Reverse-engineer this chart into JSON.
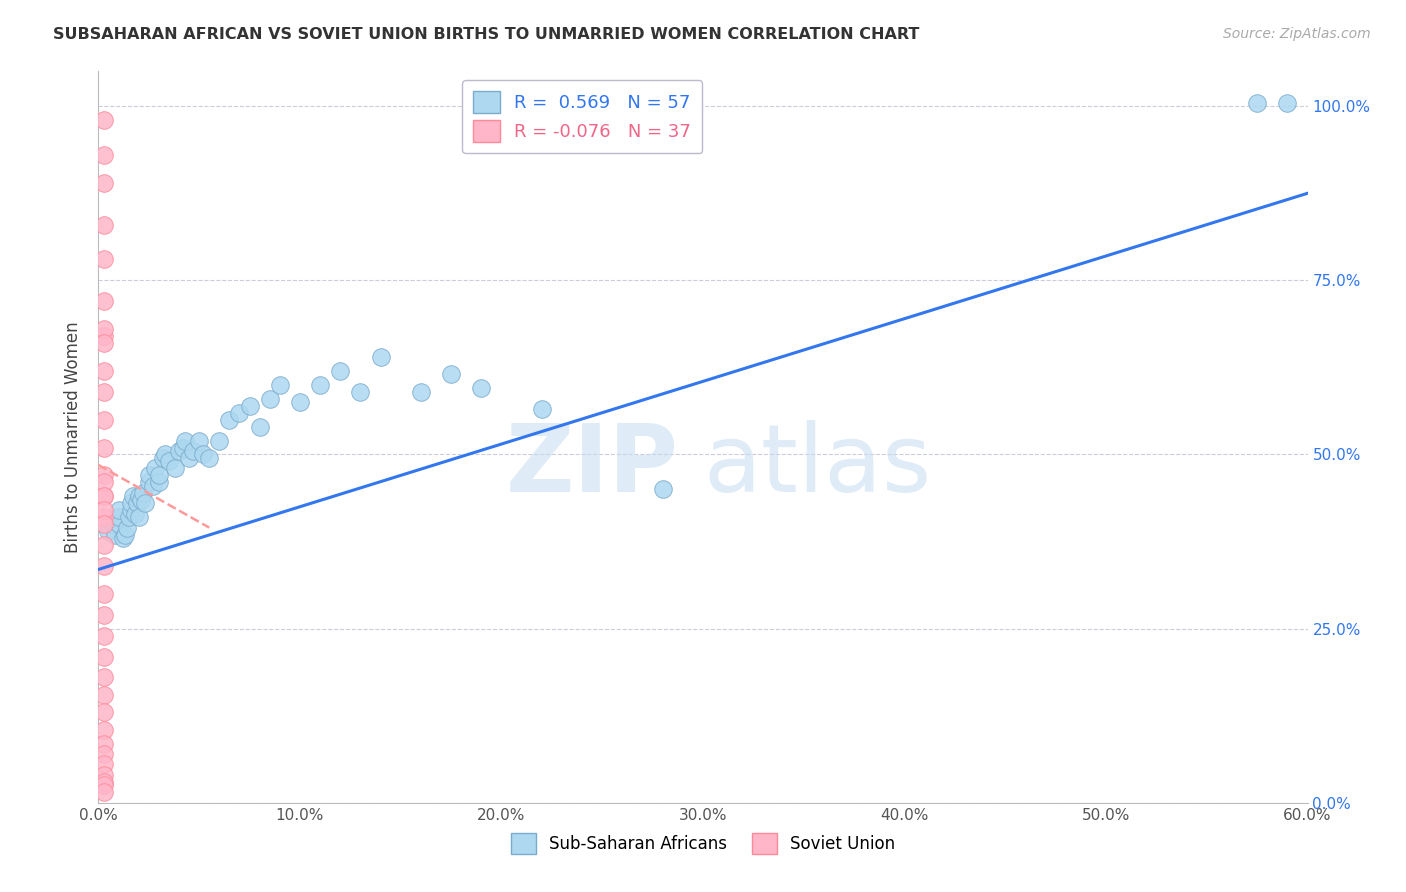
{
  "title": "SUBSAHARAN AFRICAN VS SOVIET UNION BIRTHS TO UNMARRIED WOMEN CORRELATION CHART",
  "source": "Source: ZipAtlas.com",
  "ylabel": "Births to Unmarried Women",
  "blue_label": "Sub-Saharan Africans",
  "pink_label": "Soviet Union",
  "blue_R": 0.569,
  "blue_N": 57,
  "pink_R": -0.076,
  "pink_N": 37,
  "blue_color": "#ADD8F0",
  "pink_color": "#FFB6C8",
  "blue_edge": "#7AABCC",
  "pink_edge": "#FF8899",
  "trend_blue": "#3377EE",
  "trend_pink": "#FF9999",
  "xmin": 0.0,
  "xmax": 0.6,
  "ymin": 0.0,
  "ymax": 1.05,
  "yticks": [
    0.0,
    0.25,
    0.5,
    0.75,
    1.0
  ],
  "ytick_labels": [
    "0.0%",
    "25.0%",
    "50.0%",
    "75.0%",
    "100.0%"
  ],
  "xticks": [
    0.0,
    0.1,
    0.2,
    0.3,
    0.4,
    0.5,
    0.6
  ],
  "xtick_labels": [
    "0.0%",
    "10.0%",
    "20.0%",
    "30.0%",
    "40.0%",
    "50.0%",
    "60.0%"
  ],
  "blue_trend_x0": 0.0,
  "blue_trend_y0": 0.335,
  "blue_trend_x1": 0.6,
  "blue_trend_y1": 0.875,
  "pink_trend_x0": 0.0,
  "pink_trend_y0": 0.485,
  "pink_trend_x1": 0.055,
  "pink_trend_y1": 0.395,
  "blue_x": [
    0.005,
    0.007,
    0.008,
    0.01,
    0.01,
    0.01,
    0.012,
    0.013,
    0.014,
    0.015,
    0.016,
    0.016,
    0.017,
    0.018,
    0.019,
    0.02,
    0.02,
    0.021,
    0.022,
    0.023,
    0.025,
    0.025,
    0.027,
    0.028,
    0.03,
    0.03,
    0.032,
    0.033,
    0.035,
    0.038,
    0.04,
    0.042,
    0.043,
    0.045,
    0.047,
    0.05,
    0.052,
    0.055,
    0.06,
    0.065,
    0.07,
    0.075,
    0.08,
    0.085,
    0.09,
    0.1,
    0.11,
    0.12,
    0.13,
    0.14,
    0.16,
    0.175,
    0.19,
    0.22,
    0.28,
    0.575,
    0.59
  ],
  "blue_y": [
    0.39,
    0.4,
    0.385,
    0.4,
    0.41,
    0.42,
    0.38,
    0.385,
    0.395,
    0.41,
    0.42,
    0.43,
    0.44,
    0.415,
    0.43,
    0.41,
    0.44,
    0.435,
    0.445,
    0.43,
    0.46,
    0.47,
    0.455,
    0.48,
    0.46,
    0.47,
    0.495,
    0.5,
    0.49,
    0.48,
    0.505,
    0.51,
    0.52,
    0.495,
    0.505,
    0.52,
    0.5,
    0.495,
    0.52,
    0.55,
    0.56,
    0.57,
    0.54,
    0.58,
    0.6,
    0.575,
    0.6,
    0.62,
    0.59,
    0.64,
    0.59,
    0.615,
    0.595,
    0.565,
    0.45,
    1.005,
    1.005
  ],
  "pink_x": [
    0.003,
    0.003,
    0.003,
    0.003,
    0.003,
    0.003,
    0.003,
    0.003,
    0.003,
    0.003,
    0.003,
    0.003,
    0.003,
    0.003,
    0.003,
    0.003,
    0.003,
    0.003,
    0.003,
    0.003,
    0.003,
    0.003,
    0.003,
    0.003,
    0.003,
    0.003,
    0.003,
    0.003,
    0.003,
    0.003,
    0.003,
    0.003,
    0.003,
    0.003,
    0.003,
    0.003,
    0.003
  ],
  "pink_y": [
    0.98,
    0.93,
    0.89,
    0.83,
    0.78,
    0.72,
    0.67,
    0.62,
    0.59,
    0.55,
    0.51,
    0.47,
    0.44,
    0.41,
    0.37,
    0.34,
    0.3,
    0.27,
    0.24,
    0.21,
    0.18,
    0.155,
    0.13,
    0.105,
    0.085,
    0.07,
    0.055,
    0.04,
    0.03,
    0.025,
    0.015,
    0.46,
    0.44,
    0.42,
    0.4,
    0.68,
    0.66
  ],
  "watermark_zip": "ZIP",
  "watermark_atlas": "atlas",
  "watermark_color": "#C5DCF0",
  "background_color": "#FFFFFF",
  "grid_color": "#CCCCDD"
}
